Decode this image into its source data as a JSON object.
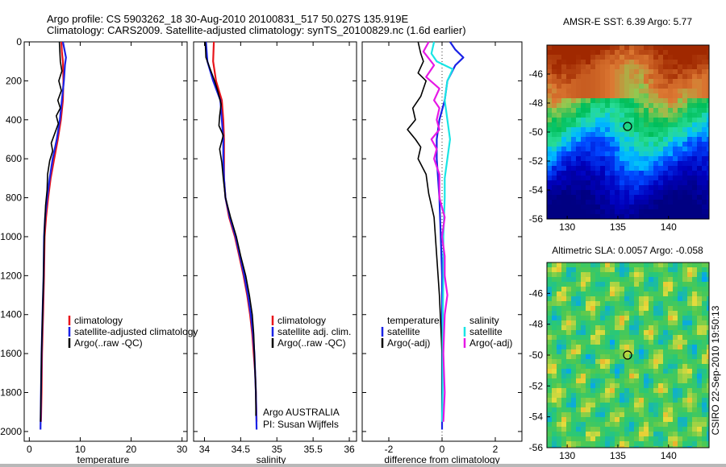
{
  "header": {
    "line1": "Argo profile: CS 5903262_18 30-Aug-2010 20100831_517 50.027S 135.919E",
    "line2": "Climatology: CARS2009. Satellite-adjusted climatology: synTS_20100829.nc (1.6d earlier)"
  },
  "side_label": "CSIRO 22-Sep-2010 19:50:13",
  "colors": {
    "climatology": "#e8141a",
    "satellite": "#1a22e6",
    "argo": "#000000",
    "cyan": "#19e5e5",
    "magenta": "#e619e6",
    "background": "#ffffff"
  },
  "panels": {
    "temperature": {
      "xlabel": "temperature",
      "legend": [
        "climatology",
        "satellite-adjusted climatology",
        "Argo(..raw -QC)"
      ]
    },
    "salinity": {
      "xlabel": "salinity",
      "legend": [
        "climatology",
        "satellite adj. clim.",
        "Argo(..raw -QC)"
      ],
      "note1": "Argo AUSTRALIA",
      "note2": "PI: Susan Wijffels"
    },
    "difference": {
      "xlabel": "difference from climatology",
      "legend_temp_head": "temperature",
      "legend_sal_head": "salinity",
      "legend_temp": [
        "satellite",
        "Argo(-adj)"
      ],
      "legend_sal": [
        "satellite",
        "Argo(-adj)"
      ]
    },
    "sst_map": {
      "title": "AMSR-E SST: 6.39 Argo: 5.77"
    },
    "sla_map": {
      "title": "Altimetric SLA: 0.0057 Argo: -0.058"
    }
  },
  "chart_data": [
    {
      "type": "line",
      "name": "temperature-profile",
      "xlabel": "temperature",
      "xlim": [
        -1,
        31
      ],
      "ylim": [
        0,
        2050
      ],
      "xticks": [
        "0",
        "10",
        "20",
        "30"
      ],
      "yticks": [
        "0",
        "200",
        "400",
        "600",
        "800",
        "1000",
        "1200",
        "1400",
        "1600",
        "1800",
        "2000"
      ],
      "series": [
        {
          "name": "climatology",
          "color": "#e8141a",
          "points": [
            [
              6.3,
              0
            ],
            [
              6.4,
              50
            ],
            [
              6.6,
              100
            ],
            [
              6.7,
              200
            ],
            [
              6.6,
              300
            ],
            [
              6.2,
              400
            ],
            [
              5.6,
              500
            ],
            [
              4.9,
              600
            ],
            [
              4.2,
              700
            ],
            [
              3.7,
              800
            ],
            [
              3.3,
              900
            ],
            [
              3.0,
              1000
            ],
            [
              2.9,
              1200
            ],
            [
              2.7,
              1400
            ],
            [
              2.5,
              1600
            ],
            [
              2.4,
              1800
            ],
            [
              2.3,
              1950
            ]
          ]
        },
        {
          "name": "satellite-adjusted climatology",
          "color": "#1a22e6",
          "points": [
            [
              6.6,
              0
            ],
            [
              6.9,
              40
            ],
            [
              7.2,
              80
            ],
            [
              7.0,
              120
            ],
            [
              6.8,
              200
            ],
            [
              6.4,
              300
            ],
            [
              6.0,
              400
            ],
            [
              5.4,
              500
            ],
            [
              4.6,
              600
            ],
            [
              4.0,
              700
            ],
            [
              3.5,
              800
            ],
            [
              3.1,
              900
            ],
            [
              2.9,
              1000
            ],
            [
              2.8,
              1200
            ],
            [
              2.6,
              1400
            ],
            [
              2.4,
              1600
            ],
            [
              2.3,
              1800
            ],
            [
              2.2,
              1990
            ]
          ]
        },
        {
          "name": "Argo(..raw -QC)",
          "color": "#000000",
          "points": [
            [
              5.9,
              0
            ],
            [
              6.0,
              50
            ],
            [
              6.1,
              100
            ],
            [
              6.4,
              150
            ],
            [
              5.8,
              200
            ],
            [
              6.3,
              250
            ],
            [
              5.6,
              300
            ],
            [
              6.1,
              340
            ],
            [
              5.3,
              380
            ],
            [
              5.7,
              420
            ],
            [
              5.0,
              470
            ],
            [
              4.3,
              520
            ],
            [
              4.6,
              560
            ],
            [
              4.0,
              610
            ],
            [
              3.6,
              680
            ],
            [
              3.5,
              760
            ],
            [
              3.2,
              840
            ],
            [
              3.0,
              950
            ],
            [
              2.9,
              1050
            ],
            [
              2.8,
              1200
            ],
            [
              2.6,
              1400
            ],
            [
              2.4,
              1600
            ],
            [
              2.3,
              1800
            ],
            [
              2.2,
              1950
            ]
          ]
        }
      ]
    },
    {
      "type": "line",
      "name": "salinity-profile",
      "xlabel": "salinity",
      "xlim": [
        33.85,
        36.1
      ],
      "ylim": [
        0,
        2050
      ],
      "xticks": [
        "34",
        "34.5",
        "35",
        "35.5",
        "36"
      ],
      "series": [
        {
          "name": "climatology",
          "color": "#e8141a",
          "points": [
            [
              34.13,
              0
            ],
            [
              34.12,
              100
            ],
            [
              34.16,
              200
            ],
            [
              34.24,
              300
            ],
            [
              34.26,
              400
            ],
            [
              34.27,
              500
            ],
            [
              34.27,
              600
            ],
            [
              34.27,
              700
            ],
            [
              34.29,
              800
            ],
            [
              34.34,
              900
            ],
            [
              34.42,
              1000
            ],
            [
              34.48,
              1100
            ],
            [
              34.54,
              1200
            ],
            [
              34.59,
              1300
            ],
            [
              34.63,
              1400
            ],
            [
              34.66,
              1500
            ],
            [
              34.68,
              1600
            ],
            [
              34.7,
              1700
            ],
            [
              34.71,
              1800
            ],
            [
              34.72,
              1950
            ]
          ]
        },
        {
          "name": "satellite adj. clim.",
          "color": "#1a22e6",
          "points": [
            [
              34.02,
              0
            ],
            [
              34.04,
              100
            ],
            [
              34.12,
              200
            ],
            [
              34.22,
              300
            ],
            [
              34.24,
              400
            ],
            [
              34.26,
              500
            ],
            [
              34.26,
              600
            ],
            [
              34.27,
              700
            ],
            [
              34.29,
              800
            ],
            [
              34.35,
              900
            ],
            [
              34.43,
              1000
            ],
            [
              34.49,
              1100
            ],
            [
              34.55,
              1200
            ],
            [
              34.6,
              1300
            ],
            [
              34.64,
              1400
            ],
            [
              34.67,
              1500
            ],
            [
              34.69,
              1600
            ],
            [
              34.7,
              1700
            ],
            [
              34.71,
              1800
            ],
            [
              34.72,
              1990
            ]
          ]
        },
        {
          "name": "Argo(..raw -QC)",
          "color": "#000000",
          "points": [
            [
              34.01,
              0
            ],
            [
              34.02,
              80
            ],
            [
              34.08,
              140
            ],
            [
              34.14,
              200
            ],
            [
              34.19,
              260
            ],
            [
              34.23,
              320
            ],
            [
              34.21,
              380
            ],
            [
              34.2,
              430
            ],
            [
              34.26,
              480
            ],
            [
              34.21,
              550
            ],
            [
              34.24,
              620
            ],
            [
              34.26,
              700
            ],
            [
              34.29,
              800
            ],
            [
              34.36,
              900
            ],
            [
              34.44,
              1000
            ],
            [
              34.5,
              1100
            ],
            [
              34.57,
              1200
            ],
            [
              34.62,
              1300
            ],
            [
              34.66,
              1400
            ],
            [
              34.68,
              1500
            ],
            [
              34.69,
              1600
            ],
            [
              34.7,
              1700
            ],
            [
              34.71,
              1800
            ],
            [
              34.71,
              1920
            ]
          ]
        }
      ]
    },
    {
      "type": "line",
      "name": "difference-profile",
      "xlabel": "difference from climatology",
      "xlim": [
        -3,
        3
      ],
      "ylim": [
        0,
        2050
      ],
      "xticks": [
        "-2",
        "0",
        "2"
      ],
      "series": [
        {
          "name": "temperature satellite",
          "color": "#1a22e6",
          "points": [
            [
              0.3,
              0
            ],
            [
              0.5,
              40
            ],
            [
              0.8,
              80
            ],
            [
              0.5,
              120
            ],
            [
              0.2,
              200
            ],
            [
              0.1,
              300
            ],
            [
              -0.1,
              400
            ],
            [
              -0.2,
              500
            ],
            [
              -0.2,
              600
            ],
            [
              -0.1,
              800
            ],
            [
              -0.05,
              1000
            ],
            [
              0,
              1200
            ],
            [
              0,
              1500
            ],
            [
              0,
              1800
            ],
            [
              0,
              1990
            ]
          ]
        },
        {
          "name": "temperature Argo(-adj)",
          "color": "#000000",
          "points": [
            [
              -0.9,
              0
            ],
            [
              -0.8,
              60
            ],
            [
              -0.7,
              100
            ],
            [
              -0.9,
              160
            ],
            [
              -0.6,
              200
            ],
            [
              -0.8,
              280
            ],
            [
              -1.1,
              340
            ],
            [
              -1.0,
              400
            ],
            [
              -1.3,
              450
            ],
            [
              -1.0,
              500
            ],
            [
              -0.8,
              540
            ],
            [
              -0.9,
              600
            ],
            [
              -0.6,
              680
            ],
            [
              -0.5,
              780
            ],
            [
              -0.3,
              900
            ],
            [
              -0.2,
              1100
            ],
            [
              -0.1,
              1300
            ],
            [
              0,
              1600
            ],
            [
              0,
              1900
            ]
          ]
        },
        {
          "name": "salinity satellite",
          "color": "#19e5e5",
          "points": [
            [
              -0.3,
              0
            ],
            [
              -0.4,
              60
            ],
            [
              -0.2,
              100
            ],
            [
              0.4,
              140
            ],
            [
              0.2,
              200
            ],
            [
              0.1,
              300
            ],
            [
              0.2,
              400
            ],
            [
              0.3,
              500
            ],
            [
              0.2,
              600
            ],
            [
              0.1,
              700
            ],
            [
              0.1,
              800
            ],
            [
              0.05,
              1000
            ],
            [
              0.05,
              1200
            ],
            [
              0.02,
              1500
            ],
            [
              0.02,
              1800
            ],
            [
              0,
              1950
            ]
          ]
        },
        {
          "name": "salinity Argo(-adj)",
          "color": "#e619e6",
          "points": [
            [
              -0.5,
              0
            ],
            [
              -0.7,
              50
            ],
            [
              -0.3,
              120
            ],
            [
              -0.6,
              180
            ],
            [
              -0.1,
              240
            ],
            [
              -0.3,
              300
            ],
            [
              -0.1,
              340
            ],
            [
              -0.2,
              400
            ],
            [
              -0.1,
              450
            ],
            [
              -0.4,
              500
            ],
            [
              -0.2,
              550
            ],
            [
              -0.3,
              600
            ],
            [
              -0.1,
              680
            ],
            [
              -0.1,
              800
            ],
            [
              0.1,
              900
            ],
            [
              0,
              1000
            ],
            [
              0.1,
              1100
            ],
            [
              0.1,
              1200
            ],
            [
              0.2,
              1300
            ],
            [
              0.1,
              1400
            ],
            [
              0.05,
              1600
            ],
            [
              0.1,
              1800
            ],
            [
              0.05,
              1950
            ]
          ]
        }
      ]
    },
    {
      "type": "heatmap",
      "name": "sst-map",
      "title": "AMSR-E SST: 6.39 Argo: 5.77",
      "xlim": [
        128,
        144
      ],
      "ylim": [
        -56,
        -44
      ],
      "xticks": [
        "130",
        "135",
        "140"
      ],
      "yticks": [
        "-46",
        "-48",
        "-50",
        "-52",
        "-54",
        "-56"
      ],
      "marker": [
        135.9,
        -50.0
      ]
    },
    {
      "type": "heatmap",
      "name": "sla-map",
      "title": "Altimetric SLA: 0.0057 Argo: -0.058",
      "xlim": [
        128,
        144
      ],
      "ylim": [
        -56,
        -44
      ],
      "xticks": [
        "130",
        "135",
        "140"
      ],
      "yticks": [
        "-46",
        "-48",
        "-50",
        "-52",
        "-54",
        "-56"
      ],
      "marker": [
        135.9,
        -50.0
      ]
    }
  ]
}
